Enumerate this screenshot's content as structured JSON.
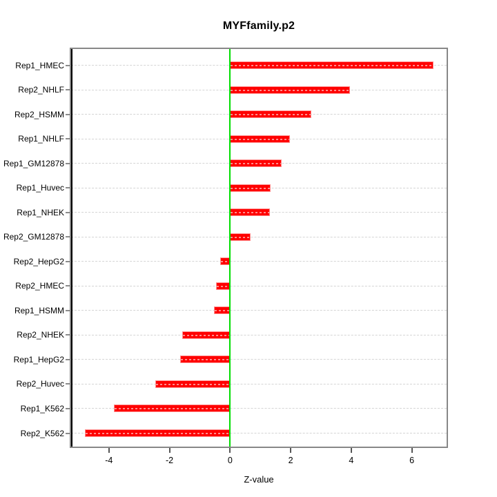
{
  "chart_data": {
    "type": "bar",
    "orientation": "horizontal",
    "title": "MYFfamily.p2",
    "xlabel": "Z-value",
    "ylabel": "",
    "categories": [
      "Rep1_HMEC",
      "Rep2_NHLF",
      "Rep2_HSMM",
      "Rep1_NHLF",
      "Rep1_GM12878",
      "Rep1_Huvec",
      "Rep1_NHEK",
      "Rep2_GM12878",
      "Rep2_HepG2",
      "Rep2_HMEC",
      "Rep1_HSMM",
      "Rep2_NHEK",
      "Rep1_HepG2",
      "Rep2_Huvec",
      "Rep1_K562",
      "Rep2_K562"
    ],
    "values": [
      6.72,
      3.96,
      2.68,
      1.98,
      1.71,
      1.34,
      1.32,
      0.68,
      -0.33,
      -0.47,
      -0.53,
      -1.59,
      -1.64,
      -2.47,
      -3.83,
      -4.8
    ],
    "xticks": [
      -4,
      -2,
      0,
      2,
      4,
      6
    ],
    "xlim": [
      -5.25,
      7.15
    ],
    "grid": "dashed-horizontal-per-row",
    "legend_position": "none",
    "colors": {
      "bar_fill": "#ff0000",
      "bar_edge": "#ff8f8f",
      "zero_line": "#00dd00",
      "grid_line": "#d4d4d4",
      "box_border": "#878787",
      "axis_line": "#000000",
      "text": "#000000",
      "background": "#ffffff"
    }
  }
}
